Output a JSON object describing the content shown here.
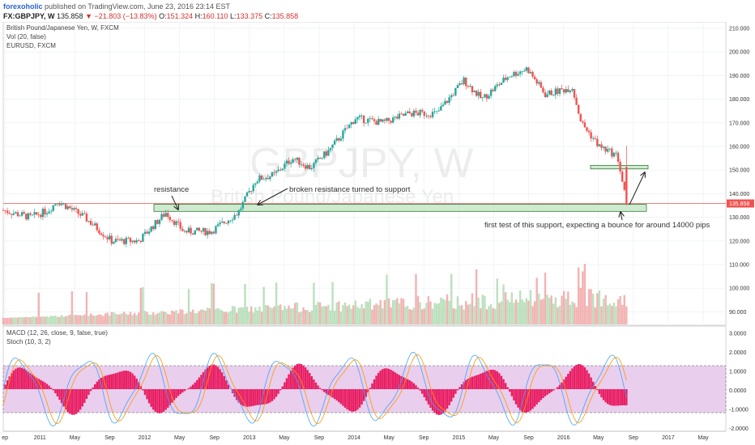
{
  "header": {
    "author": "forexoholic",
    "published_text": "published on TradingView.com, June 23, 2016 23:14 EST",
    "symbol": "FX:GBPJPY, W",
    "last": "135.858",
    "change": "▼ −21.803 (−13.83%)",
    "o_label": "O:",
    "o_value": "151.324",
    "h_label": "H:",
    "h_value": "160.110",
    "l_label": "L:",
    "l_value": "133.375",
    "c_label": "C:",
    "c_value": "135.858"
  },
  "main_pane": {
    "legend": [
      "British Pound/Japanese Yen, W, FXCM",
      "Vol (20, false)",
      "EURUSD, FXCM"
    ],
    "watermark_symbol": "GBPJPY, W",
    "watermark_name": "British Pound/Japanese Yen",
    "price_ticks": [
      "210.000",
      "200.000",
      "190.000",
      "180.000",
      "170.000",
      "160.000",
      "150.000",
      "140.000",
      "130.000",
      "120.000",
      "110.000",
      "100.000",
      "90.000"
    ],
    "last_price_label": "135.858"
  },
  "annotations": {
    "resistance": "resistance",
    "broken": "broken resistance turned to support",
    "first_test": "first test of this support, expecting a bounce for around 14000 pips"
  },
  "lower_pane": {
    "legend": [
      "MACD (12, 26, close, 9, false, true)",
      "Stoch (10, 3, 2)"
    ],
    "ticks": [
      "3.0000",
      "2.0000",
      "1.0000",
      "0.0000",
      "-1.0000",
      "-2.0000"
    ]
  },
  "time_axis": [
    "ep",
    "2011",
    "May",
    "Sep",
    "2012",
    "May",
    "Sep",
    "2013",
    "May",
    "Sep",
    "2014",
    "May",
    "Sep",
    "2015",
    "May",
    "Sep",
    "2016",
    "May",
    "Sep",
    "2017",
    "May"
  ],
  "colors": {
    "up": "#26a69a",
    "down": "#ef5350",
    "support_zone": "#c8e6c9",
    "support_border": "#2e7d32",
    "macd_hist": "#e91e63",
    "stoch_band": "#e1bee7",
    "price_line": "#ef5350"
  },
  "chart_data": {
    "type": "candlestick",
    "symbol": "GBPJPY",
    "timeframe": "W",
    "ylim": [
      85,
      212
    ],
    "x_range": [
      "2010-09",
      "2017-05"
    ],
    "close_path": [
      [
        "2010-09",
        133
      ],
      [
        "2010-12",
        130
      ],
      [
        "2011-02",
        133
      ],
      [
        "2011-03",
        137
      ],
      [
        "2011-06",
        130
      ],
      [
        "2011-09",
        120
      ],
      [
        "2011-12",
        120
      ],
      [
        "2012-03",
        132
      ],
      [
        "2012-05",
        124
      ],
      [
        "2012-08",
        124
      ],
      [
        "2012-11",
        132
      ],
      [
        "2013-01",
        146
      ],
      [
        "2013-03",
        148
      ],
      [
        "2013-05",
        155
      ],
      [
        "2013-07",
        151
      ],
      [
        "2013-09",
        158
      ],
      [
        "2013-12",
        172
      ],
      [
        "2014-03",
        170
      ],
      [
        "2014-06",
        174
      ],
      [
        "2014-09",
        174
      ],
      [
        "2014-12",
        188
      ],
      [
        "2015-02",
        180
      ],
      [
        "2015-05",
        190
      ],
      [
        "2015-07",
        193
      ],
      [
        "2015-09",
        182
      ],
      [
        "2015-12",
        185
      ],
      [
        "2016-01",
        170
      ],
      [
        "2016-03",
        160
      ],
      [
        "2016-05",
        156
      ],
      [
        "2016-06",
        135.858
      ]
    ],
    "support_zones": [
      [
        132.5,
        135.5
      ],
      [
        150.5,
        152
      ]
    ],
    "last_price": 135.858
  }
}
